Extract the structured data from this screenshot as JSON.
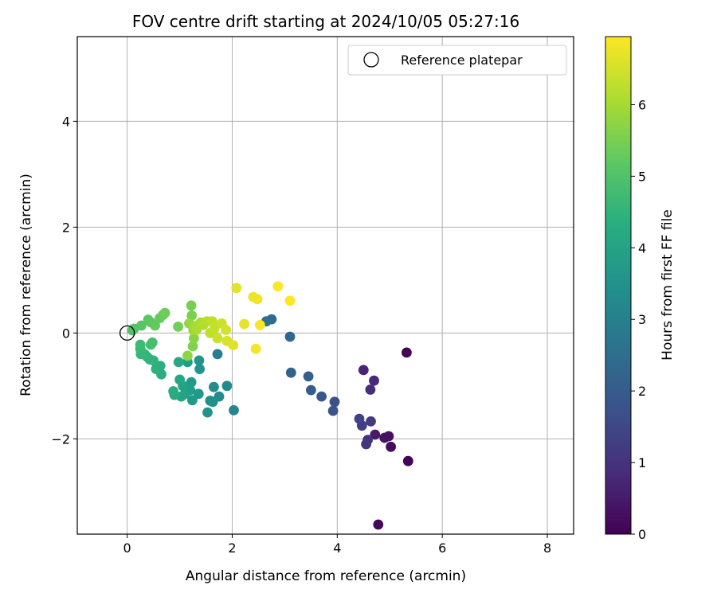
{
  "chart_data": {
    "type": "scatter",
    "title": "FOV centre drift starting at 2024/10/05 05:27:16",
    "xlabel": "Angular distance from reference (arcmin)",
    "ylabel": "Rotation from reference (arcmin)",
    "xlim": [
      -0.95,
      8.5
    ],
    "ylim": [
      -3.8,
      5.6
    ],
    "xticks": [
      0,
      2,
      4,
      6,
      8
    ],
    "yticks": [
      -2,
      0,
      2,
      4
    ],
    "grid": true,
    "legend": {
      "position": "top-right",
      "entries": [
        "Reference platepar"
      ]
    },
    "reference_point": {
      "x": 0,
      "y": 0,
      "label": "Reference platepar"
    },
    "colorbar": {
      "label": "Hours from first FF file",
      "min": 0,
      "max": 6.95,
      "ticks": [
        0,
        1,
        2,
        3,
        4,
        5,
        6
      ],
      "colormap": "viridis"
    },
    "points": [
      {
        "x": 5.32,
        "y": -0.37,
        "h": 0.05
      },
      {
        "x": 5.35,
        "y": -2.42,
        "h": 0.05
      },
      {
        "x": 4.78,
        "y": -3.62,
        "h": 0.1
      },
      {
        "x": 5.02,
        "y": -2.15,
        "h": 0.2
      },
      {
        "x": 4.98,
        "y": -1.95,
        "h": 0.3
      },
      {
        "x": 4.9,
        "y": -1.98,
        "h": 0.35
      },
      {
        "x": 4.72,
        "y": -1.92,
        "h": 0.5
      },
      {
        "x": 4.5,
        "y": -0.7,
        "h": 0.7
      },
      {
        "x": 4.7,
        "y": -0.9,
        "h": 0.8
      },
      {
        "x": 4.63,
        "y": -1.07,
        "h": 0.9
      },
      {
        "x": 4.58,
        "y": -2.02,
        "h": 1.0
      },
      {
        "x": 4.55,
        "y": -2.1,
        "h": 1.1
      },
      {
        "x": 4.64,
        "y": -1.67,
        "h": 1.2
      },
      {
        "x": 4.47,
        "y": -1.75,
        "h": 1.3
      },
      {
        "x": 4.42,
        "y": -1.62,
        "h": 1.4
      },
      {
        "x": 3.95,
        "y": -1.3,
        "h": 1.7
      },
      {
        "x": 3.92,
        "y": -1.47,
        "h": 1.8
      },
      {
        "x": 3.7,
        "y": -1.2,
        "h": 1.9
      },
      {
        "x": 3.5,
        "y": -1.08,
        "h": 2.0
      },
      {
        "x": 3.45,
        "y": -0.82,
        "h": 2.1
      },
      {
        "x": 3.12,
        "y": -0.75,
        "h": 2.2
      },
      {
        "x": 3.1,
        "y": -0.07,
        "h": 2.3
      },
      {
        "x": 2.75,
        "y": 0.26,
        "h": 2.4
      },
      {
        "x": 2.65,
        "y": 0.22,
        "h": 2.5
      },
      {
        "x": 1.72,
        "y": -0.4,
        "h": 3.0
      },
      {
        "x": 2.03,
        "y": -1.46,
        "h": 3.2
      },
      {
        "x": 1.9,
        "y": -1.0,
        "h": 3.3
      },
      {
        "x": 1.75,
        "y": -1.2,
        "h": 3.35
      },
      {
        "x": 1.65,
        "y": -1.02,
        "h": 3.4
      },
      {
        "x": 1.63,
        "y": -1.3,
        "h": 3.45
      },
      {
        "x": 1.58,
        "y": -1.28,
        "h": 3.5
      },
      {
        "x": 1.53,
        "y": -1.5,
        "h": 3.55
      },
      {
        "x": 1.38,
        "y": -0.68,
        "h": 3.6
      },
      {
        "x": 1.37,
        "y": -0.52,
        "h": 3.65
      },
      {
        "x": 1.36,
        "y": -1.15,
        "h": 3.7
      },
      {
        "x": 1.24,
        "y": -1.27,
        "h": 3.75
      },
      {
        "x": 1.22,
        "y": -0.93,
        "h": 3.8
      },
      {
        "x": 1.2,
        "y": -1.08,
        "h": 3.85
      },
      {
        "x": 1.15,
        "y": -0.55,
        "h": 3.9
      },
      {
        "x": 1.1,
        "y": -1.15,
        "h": 3.95
      },
      {
        "x": 1.06,
        "y": -1.0,
        "h": 4.0
      },
      {
        "x": 1.03,
        "y": -1.2,
        "h": 4.05
      },
      {
        "x": 1.0,
        "y": -0.88,
        "h": 4.1
      },
      {
        "x": 0.98,
        "y": -0.55,
        "h": 4.15
      },
      {
        "x": 0.9,
        "y": -1.17,
        "h": 4.2
      },
      {
        "x": 0.88,
        "y": -1.1,
        "h": 4.25
      },
      {
        "x": 0.65,
        "y": -0.78,
        "h": 4.3
      },
      {
        "x": 0.63,
        "y": -0.62,
        "h": 4.35
      },
      {
        "x": 0.55,
        "y": -0.68,
        "h": 4.4
      },
      {
        "x": 0.5,
        "y": -0.52,
        "h": 4.45
      },
      {
        "x": 0.43,
        "y": -0.5,
        "h": 4.5
      },
      {
        "x": 0.38,
        "y": -0.45,
        "h": 4.55
      },
      {
        "x": 0.33,
        "y": -0.4,
        "h": 4.6
      },
      {
        "x": 0.26,
        "y": -0.4,
        "h": 4.65
      },
      {
        "x": 0.25,
        "y": -0.3,
        "h": 4.7
      },
      {
        "x": 0.25,
        "y": -0.22,
        "h": 4.75
      },
      {
        "x": 0.45,
        "y": -0.22,
        "h": 4.85
      },
      {
        "x": 0.48,
        "y": -0.18,
        "h": 4.9
      },
      {
        "x": 0.1,
        "y": 0.05,
        "h": 5.0
      },
      {
        "x": 0.13,
        "y": 0.08,
        "h": 5.05
      },
      {
        "x": 0.27,
        "y": 0.14,
        "h": 5.1
      },
      {
        "x": 0.4,
        "y": 0.25,
        "h": 5.15
      },
      {
        "x": 0.45,
        "y": 0.2,
        "h": 5.2
      },
      {
        "x": 0.53,
        "y": 0.14,
        "h": 5.25
      },
      {
        "x": 0.62,
        "y": 0.28,
        "h": 5.3
      },
      {
        "x": 0.68,
        "y": 0.34,
        "h": 5.35
      },
      {
        "x": 0.72,
        "y": 0.38,
        "h": 5.4
      },
      {
        "x": 0.97,
        "y": 0.12,
        "h": 5.45
      },
      {
        "x": 1.22,
        "y": 0.52,
        "h": 5.5
      },
      {
        "x": 1.23,
        "y": 0.33,
        "h": 5.55
      },
      {
        "x": 1.25,
        "y": -0.25,
        "h": 5.6
      },
      {
        "x": 1.27,
        "y": -0.1,
        "h": 5.7
      },
      {
        "x": 1.15,
        "y": -0.43,
        "h": 5.75
      },
      {
        "x": 1.18,
        "y": 0.18,
        "h": 5.85
      },
      {
        "x": 1.26,
        "y": 0.05,
        "h": 5.95
      },
      {
        "x": 1.3,
        "y": 0.13,
        "h": 6.0
      },
      {
        "x": 1.32,
        "y": 0.06,
        "h": 6.05
      },
      {
        "x": 1.4,
        "y": 0.2,
        "h": 6.1
      },
      {
        "x": 1.45,
        "y": 0.15,
        "h": 6.15
      },
      {
        "x": 1.52,
        "y": 0.22,
        "h": 6.2
      },
      {
        "x": 1.58,
        "y": 0.0,
        "h": 6.25
      },
      {
        "x": 1.62,
        "y": 0.22,
        "h": 6.3
      },
      {
        "x": 1.66,
        "y": 0.08,
        "h": 6.35
      },
      {
        "x": 1.72,
        "y": -0.1,
        "h": 6.4
      },
      {
        "x": 1.8,
        "y": 0.18,
        "h": 6.45
      },
      {
        "x": 1.88,
        "y": 0.06,
        "h": 6.5
      },
      {
        "x": 1.9,
        "y": -0.15,
        "h": 6.55
      },
      {
        "x": 2.02,
        "y": -0.23,
        "h": 6.6
      },
      {
        "x": 2.08,
        "y": 0.85,
        "h": 6.65
      },
      {
        "x": 2.23,
        "y": 0.17,
        "h": 6.7
      },
      {
        "x": 2.4,
        "y": 0.68,
        "h": 6.75
      },
      {
        "x": 2.48,
        "y": 0.64,
        "h": 6.8
      },
      {
        "x": 2.45,
        "y": -0.3,
        "h": 6.85
      },
      {
        "x": 2.53,
        "y": 0.15,
        "h": 6.88
      },
      {
        "x": 2.87,
        "y": 0.88,
        "h": 6.92
      },
      {
        "x": 3.1,
        "y": 0.61,
        "h": 6.95
      }
    ]
  }
}
